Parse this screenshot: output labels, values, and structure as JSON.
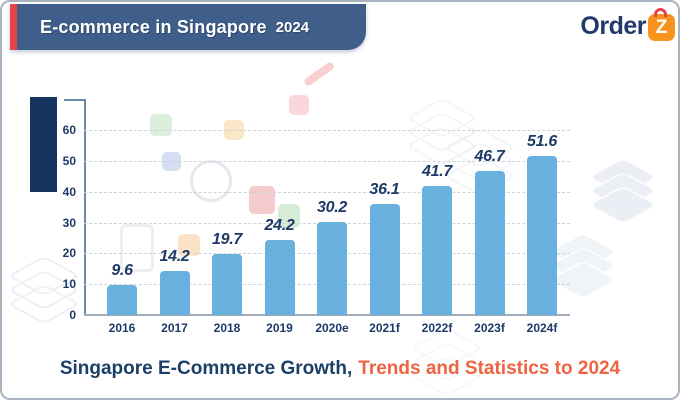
{
  "header": {
    "title_main": "E-commerce in Singapore",
    "title_year": "2024"
  },
  "brand": {
    "name_text": "Order",
    "logo_letter": "Z"
  },
  "caption": {
    "part1": "Singapore E-Commerce Growth,",
    "part2": "Trends and Statistics to 2024"
  },
  "chart_data": {
    "type": "bar",
    "categories": [
      "2016",
      "2017",
      "2018",
      "2019",
      "2020e",
      "2021f",
      "2022f",
      "2023f",
      "2024f"
    ],
    "values": [
      9.6,
      14.2,
      19.7,
      24.2,
      30.2,
      36.1,
      41.7,
      46.7,
      51.6
    ],
    "title": "Singapore E-Commerce Growth, Trends and Statistics to 2024",
    "xlabel": "",
    "ylabel": "",
    "ylim": [
      0,
      60
    ],
    "yticks": [
      0,
      10,
      20,
      30,
      40,
      50,
      60
    ],
    "grid": true,
    "legend": "none",
    "bar_color": "#68b0de",
    "value_label_color": "#1d3a66",
    "axis_label_color": "#1d3a66"
  },
  "colors": {
    "banner_bg": "#3f5e8a",
    "banner_stripe": "#e8424d",
    "navy_text": "#1b3f66",
    "orange_text": "#ef6340",
    "logo_navy": "#24396b",
    "logo_orange": "#f7941e"
  }
}
